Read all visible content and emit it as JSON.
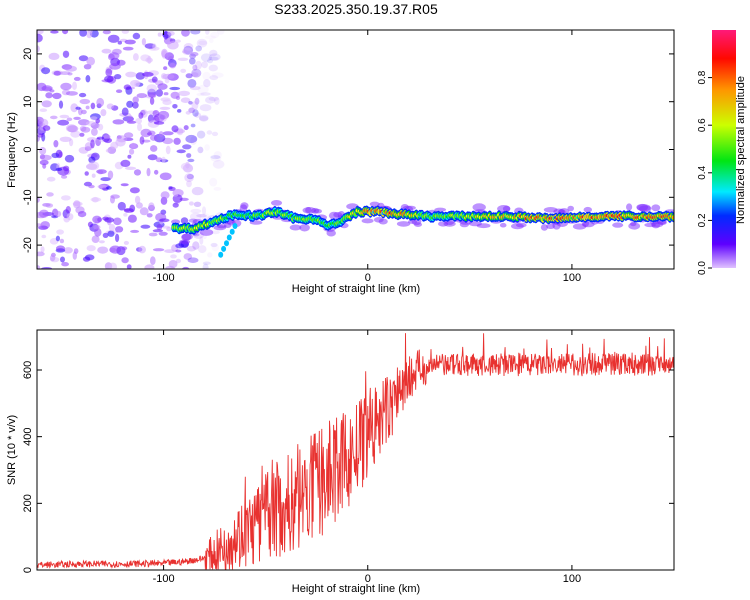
{
  "figure": {
    "title": "S233.2025.350.19.37.R05"
  },
  "chart_data": [
    {
      "type": "heatmap",
      "title": "S233.2025.350.19.37.R05",
      "xlabel": "Height of straight line (km)",
      "ylabel": "Frequency (Hz)",
      "xlim": [
        -162,
        150
      ],
      "ylim": [
        -25,
        25
      ],
      "xticks": [
        -100,
        0,
        100
      ],
      "yticks": [
        -20,
        -10,
        0,
        10,
        20
      ],
      "colorbar": {
        "label": "Normalized spectral amplitude",
        "range": [
          0,
          1
        ],
        "ticks": [
          "0.0",
          "0.2",
          "0.4",
          "0.6",
          "0.8"
        ]
      },
      "noise_region": {
        "x_range": [
          -162,
          -80
        ],
        "freq_range": [
          -25,
          25
        ]
      },
      "ridge": [
        {
          "x": -95,
          "freq": -16.5,
          "amp": 0.55
        },
        {
          "x": -85,
          "freq": -16.5,
          "amp": 0.6
        },
        {
          "x": -75,
          "freq": -15.0,
          "amp": 0.55
        },
        {
          "x": -65,
          "freq": -13.5,
          "amp": 0.5
        },
        {
          "x": -55,
          "freq": -14.0,
          "amp": 0.5
        },
        {
          "x": -45,
          "freq": -13.0,
          "amp": 0.55
        },
        {
          "x": -35,
          "freq": -14.5,
          "amp": 0.5
        },
        {
          "x": -25,
          "freq": -14.5,
          "amp": 0.55
        },
        {
          "x": -20,
          "freq": -16.0,
          "amp": 0.5
        },
        {
          "x": -15,
          "freq": -15.5,
          "amp": 0.5
        },
        {
          "x": -5,
          "freq": -13.0,
          "amp": 0.65
        },
        {
          "x": 5,
          "freq": -13.0,
          "amp": 0.9
        },
        {
          "x": 15,
          "freq": -13.5,
          "amp": 0.75
        },
        {
          "x": 30,
          "freq": -14.0,
          "amp": 0.5
        },
        {
          "x": 50,
          "freq": -14.0,
          "amp": 0.6
        },
        {
          "x": 70,
          "freq": -14.0,
          "amp": 0.7
        },
        {
          "x": 90,
          "freq": -14.5,
          "amp": 0.85
        },
        {
          "x": 110,
          "freq": -14.0,
          "amp": 0.8
        },
        {
          "x": 130,
          "freq": -14.0,
          "amp": 0.75
        },
        {
          "x": 150,
          "freq": -14.0,
          "amp": 0.8
        }
      ]
    },
    {
      "type": "line",
      "xlabel": "Height of straight line (km)",
      "ylabel": "SNR (10 * v/v)",
      "xlim": [
        -162,
        150
      ],
      "ylim": [
        0,
        720
      ],
      "xticks": [
        -100,
        0,
        100
      ],
      "yticks": [
        0,
        200,
        400,
        600
      ],
      "series": [
        {
          "name": "SNR",
          "color": "#e8312f",
          "x": [
            -162,
            -140,
            -120,
            -100,
            -90,
            -80,
            -75,
            -70,
            -65,
            -60,
            -55,
            -50,
            -45,
            -40,
            -35,
            -30,
            -25,
            -20,
            -15,
            -10,
            -5,
            0,
            5,
            10,
            15,
            20,
            25,
            30,
            40,
            60,
            80,
            100,
            120,
            140,
            150
          ],
          "y": [
            15,
            18,
            18,
            20,
            25,
            35,
            50,
            70,
            100,
            110,
            130,
            160,
            180,
            190,
            210,
            230,
            250,
            280,
            300,
            330,
            360,
            400,
            440,
            480,
            530,
            575,
            600,
            610,
            615,
            615,
            615,
            615,
            620,
            615,
            620
          ]
        }
      ]
    }
  ]
}
